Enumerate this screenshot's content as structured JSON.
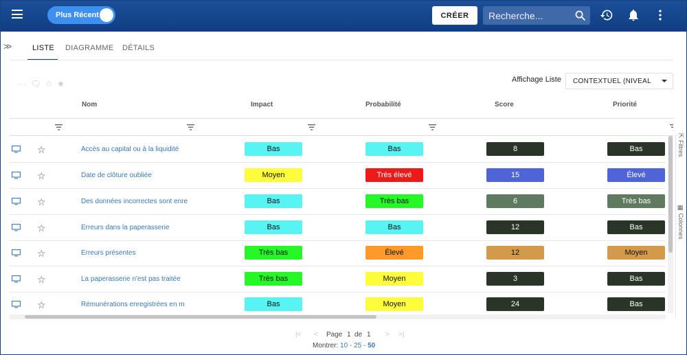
{
  "topbar": {
    "toggle_label": "Plus Récent",
    "create_label": "CRÉER",
    "search_placeholder": "Recherche..."
  },
  "tabs": [
    {
      "label": "LISTE",
      "active": true
    },
    {
      "label": "DIAGRAMME",
      "active": false
    },
    {
      "label": "DÉTAILS",
      "active": false
    }
  ],
  "view": {
    "label": "Affichage Liste",
    "selected": "CONTEXTUEL (NIVEAL"
  },
  "toolbar": {
    "more": "···"
  },
  "columns": {
    "name": "Nom",
    "impact": "Impact",
    "probability": "Probabilité",
    "score": "Score",
    "priority": "Priorité"
  },
  "colors": {
    "cyan": "#57f4f3",
    "yellow": "#fdfd3c",
    "green": "#25f826",
    "red": "#ee1a1a",
    "orange": "#fc9a2a",
    "dark": "#293627",
    "blue": "#4f64d6",
    "sage": "#5f7a5e",
    "tan": "#d39a4c"
  },
  "rows": [
    {
      "name": "Accès au capital ou à la liquidité",
      "impact": "Bas",
      "impact_color": "#57f4f3",
      "probability": "Bas",
      "probability_color": "#57f4f3",
      "score": "8",
      "score_color": "#293627",
      "priority": "Bas",
      "priority_color": "#293627"
    },
    {
      "name": "Date de clôture oubliée",
      "impact": "Moyen",
      "impact_color": "#fdfd3c",
      "probability": "Très élevé",
      "probability_color": "#ee1a1a",
      "score": "15",
      "score_color": "#4f64d6",
      "priority": "Élevé",
      "priority_color": "#4f64d6"
    },
    {
      "name": "Des données incorrectes sont enre",
      "impact": "Bas",
      "impact_color": "#57f4f3",
      "probability": "Très bas",
      "probability_color": "#25f826",
      "score": "6",
      "score_color": "#5f7a5e",
      "priority": "Très bas",
      "priority_color": "#5f7a5e"
    },
    {
      "name": "Erreurs dans la paperasserie",
      "impact": "Bas",
      "impact_color": "#57f4f3",
      "probability": "Bas",
      "probability_color": "#57f4f3",
      "score": "12",
      "score_color": "#293627",
      "priority": "Bas",
      "priority_color": "#293627"
    },
    {
      "name": "Erreurs présentes",
      "impact": "Très bas",
      "impact_color": "#25f826",
      "probability": "Élevé",
      "probability_color": "#fc9a2a",
      "score": "12",
      "score_color": "#d39a4c",
      "priority": "Moyen",
      "priority_color": "#d39a4c"
    },
    {
      "name": "La paperasserie n'est pas traitée",
      "impact": "Très bas",
      "impact_color": "#25f826",
      "probability": "Moyen",
      "probability_color": "#fdfd3c",
      "score": "3",
      "score_color": "#293627",
      "priority": "Bas",
      "priority_color": "#293627"
    },
    {
      "name": "Rémunérations enregistrées en m",
      "impact": "Bas",
      "impact_color": "#57f4f3",
      "probability": "Moyen",
      "probability_color": "#fdfd3c",
      "score": "24",
      "score_color": "#293627",
      "priority": "Bas",
      "priority_color": "#293627"
    }
  ],
  "side_tabs": {
    "filters": "Filtres",
    "columns": "Colonnes"
  },
  "pager": {
    "page_label": "Page",
    "current": "1",
    "of_label": "de",
    "total": "1",
    "show_label": "Montrer:",
    "sizes": [
      "10",
      "25",
      "50"
    ],
    "size_sep": "-",
    "current_size": "50"
  }
}
